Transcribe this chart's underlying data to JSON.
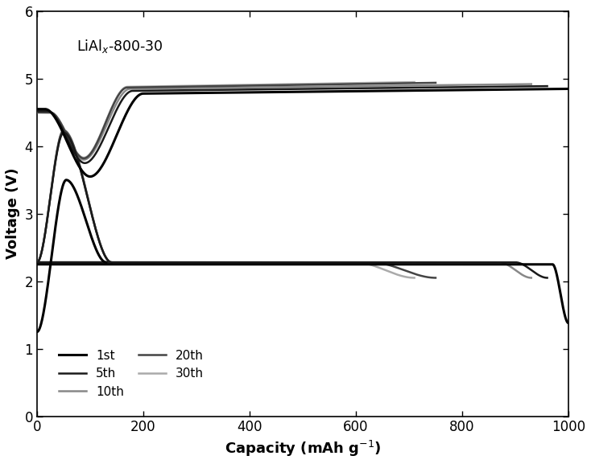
{
  "xlabel": "Capacity (mAh g$^{-1}$)",
  "ylabel": "Voltage (V)",
  "xlim": [
    0,
    1000
  ],
  "ylim": [
    0,
    6
  ],
  "xticks": [
    0,
    200,
    400,
    600,
    800,
    1000
  ],
  "yticks": [
    0,
    1,
    2,
    3,
    4,
    5,
    6
  ],
  "annotation": "LiAl$_x$-800-30",
  "cycles": {
    "1st": {
      "color": "#000000",
      "lw": 2.2,
      "discharge_plateau": 2.25,
      "discharge_drop_start": 970,
      "discharge_drop_end": 1000,
      "discharge_final": 1.38,
      "charge_peak_v": 4.55,
      "charge_peak_cap": 15,
      "charge_dip_v": 3.55,
      "charge_dip_cap": 100,
      "charge_plateau_v": 4.78,
      "charge_plateau_start": 200,
      "charge_end_cap": 1000,
      "init_start_v": 1.25,
      "init_peak_v": 3.5,
      "init_peak_cap": 55,
      "init_end_cap": 130,
      "init_end_v": 2.28
    },
    "5th": {
      "color": "#1a1a1a",
      "lw": 1.8,
      "discharge_plateau": 2.28,
      "discharge_drop_start": 900,
      "discharge_drop_end": 960,
      "discharge_final": 2.05,
      "charge_peak_v": 4.52,
      "charge_peak_cap": 20,
      "charge_dip_v": 3.75,
      "charge_dip_cap": 90,
      "charge_plateau_v": 4.82,
      "charge_plateau_start": 180,
      "charge_end_cap": 960,
      "init_start_v": 2.28,
      "init_peak_v": 4.2,
      "init_peak_cap": 50,
      "init_end_cap": 140,
      "init_end_v": 2.28
    },
    "10th": {
      "color": "#888888",
      "lw": 1.8,
      "discharge_plateau": 2.28,
      "discharge_drop_start": 870,
      "discharge_drop_end": 930,
      "discharge_final": 2.05,
      "charge_peak_v": 4.5,
      "charge_peak_cap": 25,
      "charge_dip_v": 3.8,
      "charge_dip_cap": 88,
      "charge_plateau_v": 4.85,
      "charge_plateau_start": 175,
      "charge_end_cap": 930,
      "init_start_v": 2.28,
      "init_peak_v": 4.22,
      "init_peak_cap": 50,
      "init_end_cap": 140,
      "init_end_v": 2.28
    },
    "20th": {
      "color": "#444444",
      "lw": 1.8,
      "discharge_plateau": 2.28,
      "discharge_drop_start": 630,
      "discharge_drop_end": 750,
      "discharge_final": 2.05,
      "charge_peak_v": 4.5,
      "charge_peak_cap": 25,
      "charge_dip_v": 3.82,
      "charge_dip_cap": 88,
      "charge_plateau_v": 4.87,
      "charge_plateau_start": 170,
      "charge_end_cap": 750,
      "init_start_v": 2.28,
      "init_peak_v": 4.23,
      "init_peak_cap": 50,
      "init_end_cap": 140,
      "init_end_v": 2.28
    },
    "30th": {
      "color": "#aaaaaa",
      "lw": 1.8,
      "discharge_plateau": 2.28,
      "discharge_drop_start": 600,
      "discharge_drop_end": 710,
      "discharge_final": 2.05,
      "charge_peak_v": 4.5,
      "charge_peak_cap": 25,
      "charge_dip_v": 3.83,
      "charge_dip_cap": 88,
      "charge_plateau_v": 4.88,
      "charge_plateau_start": 170,
      "charge_end_cap": 710,
      "init_start_v": 2.28,
      "init_peak_v": 4.24,
      "init_peak_cap": 50,
      "init_end_cap": 140,
      "init_end_v": 2.28
    }
  },
  "figsize": [
    7.34,
    5.77
  ],
  "dpi": 100,
  "background_color": "#ffffff"
}
